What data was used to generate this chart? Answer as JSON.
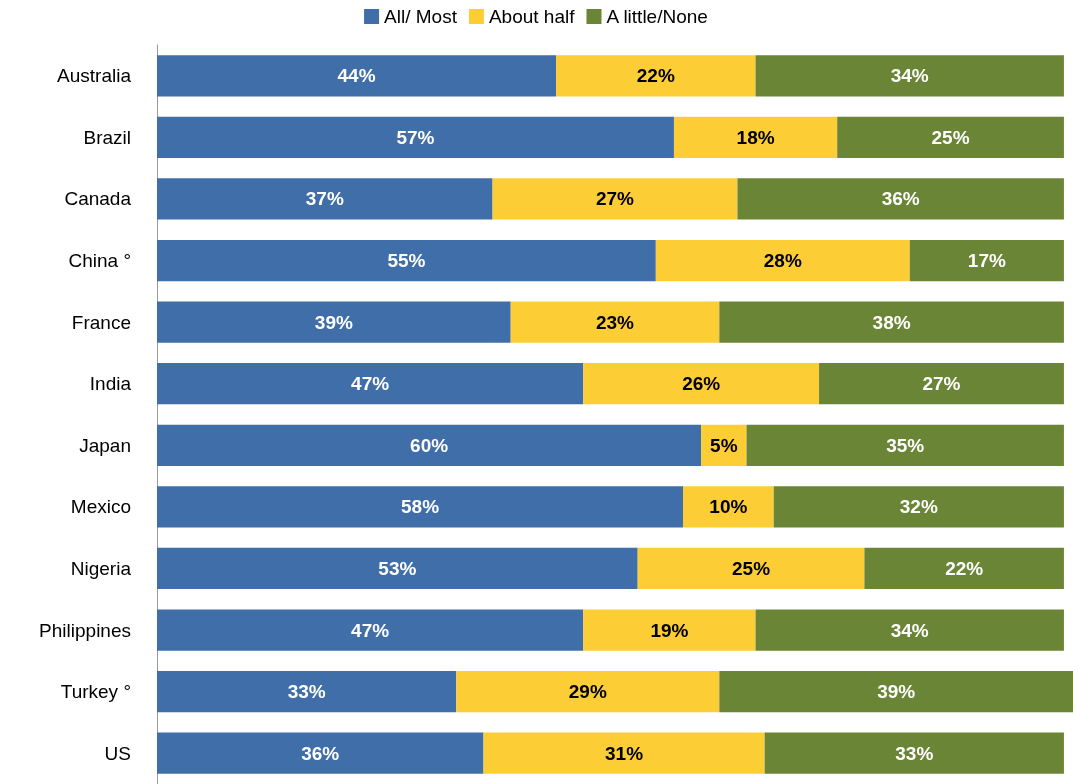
{
  "chart_data": {
    "type": "bar",
    "orientation": "horizontal",
    "stacked": true,
    "legend": "top",
    "categories": [
      "Australia",
      "Brazil",
      "Canada",
      "China °",
      "France",
      "India",
      "Japan",
      "Mexico",
      "Nigeria",
      "Philippines",
      "Turkey °",
      "US"
    ],
    "series": [
      {
        "name": "All/ Most",
        "color": "#3f6ea8",
        "values": [
          44,
          57,
          37,
          55,
          39,
          47,
          60,
          58,
          53,
          47,
          33,
          36
        ],
        "value_labels": [
          "44%",
          "57%",
          "37%",
          "55%",
          "39%",
          "47%",
          "60%",
          "58%",
          "53%",
          "47%",
          "33%",
          "36%"
        ]
      },
      {
        "name": "About half",
        "color": "#fccd35",
        "values": [
          22,
          18,
          27,
          28,
          23,
          26,
          5,
          10,
          25,
          19,
          29,
          31
        ],
        "value_labels": [
          "22%",
          "18%",
          "27%",
          "28%",
          "23%",
          "26%",
          "5%",
          "10%",
          "25%",
          "19%",
          "29%",
          "31%"
        ]
      },
      {
        "name": "A little/None",
        "color": "#6a8535",
        "values": [
          34,
          25,
          36,
          17,
          38,
          27,
          35,
          32,
          22,
          34,
          39,
          33
        ],
        "value_labels": [
          "34%",
          "25%",
          "36%",
          "17%",
          "38%",
          "27%",
          "35%",
          "32%",
          "22%",
          "34%",
          "39%",
          "33%"
        ]
      }
    ]
  }
}
